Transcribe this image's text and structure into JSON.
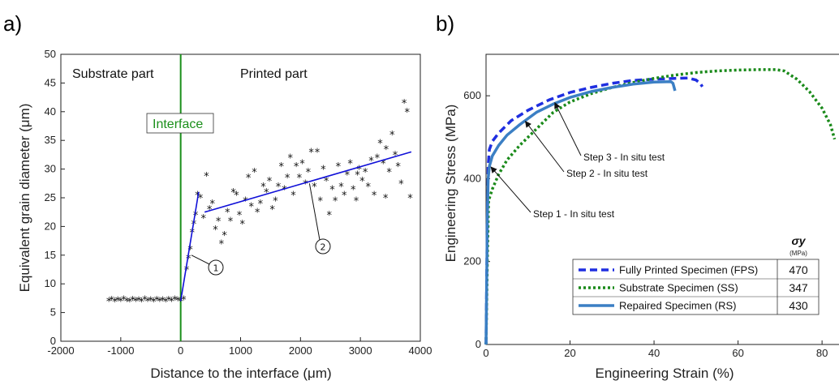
{
  "chart_data": [
    {
      "panel_label": "a)",
      "type": "scatter",
      "xlabel": "Distance to the interface (μm)",
      "ylabel": "Equivalent grain diameter (μm)",
      "xlim": [
        -2000,
        4000
      ],
      "ylim": [
        0,
        50
      ],
      "xticks": [
        "-2000",
        "-1000",
        "0",
        "1000",
        "2000",
        "3000",
        "4000"
      ],
      "yticks": [
        "0",
        "5",
        "10",
        "15",
        "20",
        "25",
        "30",
        "35",
        "40",
        "45",
        "50"
      ],
      "region_labels": {
        "left": "Substrate part",
        "right": "Printed part"
      },
      "interface_label": "Interface",
      "interface_x": 0,
      "marker": "asterisk",
      "points": [
        [
          -1200,
          7.0
        ],
        [
          -1150,
          7.2
        ],
        [
          -1100,
          6.9
        ],
        [
          -1050,
          7.1
        ],
        [
          -1000,
          7.0
        ],
        [
          -950,
          7.3
        ],
        [
          -900,
          7.0
        ],
        [
          -850,
          6.9
        ],
        [
          -800,
          7.2
        ],
        [
          -750,
          7.0
        ],
        [
          -700,
          7.1
        ],
        [
          -650,
          6.9
        ],
        [
          -600,
          7.3
        ],
        [
          -550,
          7.0
        ],
        [
          -500,
          7.1
        ],
        [
          -450,
          6.9
        ],
        [
          -400,
          7.2
        ],
        [
          -350,
          7.0
        ],
        [
          -300,
          7.1
        ],
        [
          -250,
          6.9
        ],
        [
          -200,
          7.2
        ],
        [
          -150,
          7.0
        ],
        [
          -100,
          7.3
        ],
        [
          -50,
          7.1
        ],
        [
          0,
          7.0
        ],
        [
          50,
          7.3
        ],
        [
          100,
          12.5
        ],
        [
          130,
          14.5
        ],
        [
          160,
          16.0
        ],
        [
          190,
          19.0
        ],
        [
          220,
          20.5
        ],
        [
          250,
          22.0
        ],
        [
          280,
          25.5
        ],
        [
          330,
          25.0
        ],
        [
          380,
          21.5
        ],
        [
          430,
          28.8
        ],
        [
          480,
          23.0
        ],
        [
          530,
          24.0
        ],
        [
          580,
          19.5
        ],
        [
          630,
          21.0
        ],
        [
          680,
          17.0
        ],
        [
          730,
          18.5
        ],
        [
          780,
          22.5
        ],
        [
          830,
          21.0
        ],
        [
          880,
          26.0
        ],
        [
          930,
          25.5
        ],
        [
          980,
          22.0
        ],
        [
          1030,
          20.5
        ],
        [
          1080,
          24.5
        ],
        [
          1130,
          28.5
        ],
        [
          1180,
          23.5
        ],
        [
          1230,
          29.5
        ],
        [
          1280,
          22.5
        ],
        [
          1330,
          24.0
        ],
        [
          1380,
          27.0
        ],
        [
          1430,
          26.0
        ],
        [
          1480,
          28.0
        ],
        [
          1530,
          23.0
        ],
        [
          1580,
          24.5
        ],
        [
          1630,
          27.0
        ],
        [
          1680,
          30.5
        ],
        [
          1730,
          26.5
        ],
        [
          1780,
          28.5
        ],
        [
          1830,
          32.0
        ],
        [
          1880,
          25.5
        ],
        [
          1930,
          30.5
        ],
        [
          1980,
          28.5
        ],
        [
          2030,
          31.0
        ],
        [
          2080,
          27.5
        ],
        [
          2130,
          29.5
        ],
        [
          2180,
          33.0
        ],
        [
          2230,
          27.0
        ],
        [
          2280,
          33.0
        ],
        [
          2330,
          24.5
        ],
        [
          2380,
          30.0
        ],
        [
          2430,
          28.0
        ],
        [
          2480,
          22.0
        ],
        [
          2530,
          26.5
        ],
        [
          2580,
          24.5
        ],
        [
          2630,
          30.5
        ],
        [
          2680,
          27.0
        ],
        [
          2730,
          25.5
        ],
        [
          2780,
          29.0
        ],
        [
          2830,
          31.0
        ],
        [
          2880,
          26.5
        ],
        [
          2930,
          24.5
        ],
        [
          2980,
          30.0
        ],
        [
          3030,
          28.0
        ],
        [
          3080,
          29.5
        ],
        [
          3130,
          27.0
        ],
        [
          3180,
          31.5
        ],
        [
          3230,
          25.5
        ],
        [
          3280,
          32.0
        ],
        [
          3330,
          34.5
        ],
        [
          3380,
          31.0
        ],
        [
          3430,
          33.5
        ],
        [
          3480,
          29.5
        ],
        [
          3530,
          36.0
        ],
        [
          3580,
          32.5
        ],
        [
          3630,
          30.5
        ],
        [
          3680,
          27.5
        ],
        [
          3730,
          41.5
        ],
        [
          3780,
          40.0
        ],
        [
          3830,
          25.0
        ],
        [
          3420,
          25.0
        ],
        [
          2950,
          29.0
        ]
      ],
      "fit_lines": [
        {
          "label": "①",
          "from": [
            0,
            7.0
          ],
          "to": [
            300,
            26.0
          ]
        },
        {
          "label": "②",
          "from": [
            400,
            22.5
          ],
          "to": [
            3850,
            33.0
          ]
        }
      ]
    },
    {
      "panel_label": "b)",
      "type": "line",
      "xlabel": "Engineering Strain (%)",
      "ylabel": "Engineering Stress (MPa)",
      "xlim": [
        0,
        85
      ],
      "ylim": [
        0,
        700
      ],
      "xticks": [
        "0",
        "20",
        "40",
        "60",
        "80"
      ],
      "yticks": [
        "0",
        "200",
        "400",
        "600"
      ],
      "legend_header": "σy",
      "legend_unit": "(MPa)",
      "series": [
        {
          "name": "Fully Printed Specimen (FPS)",
          "sigma_y": "470",
          "color": "#1f2ee0",
          "style": "dashed",
          "points": [
            [
              0,
              0
            ],
            [
              0.3,
              300
            ],
            [
              0.5,
              430
            ],
            [
              0.8,
              470
            ],
            [
              1.5,
              490
            ],
            [
              3,
              510
            ],
            [
              6,
              540
            ],
            [
              10,
              565
            ],
            [
              15,
              590
            ],
            [
              20,
              608
            ],
            [
              25,
              620
            ],
            [
              30,
              630
            ],
            [
              35,
              637
            ],
            [
              40,
              640
            ],
            [
              45,
              642
            ],
            [
              48,
              643
            ],
            [
              50,
              638
            ],
            [
              51,
              630
            ],
            [
              51.5,
              622
            ]
          ]
        },
        {
          "name": "Substrate Specimen (SS)",
          "sigma_y": "347",
          "color": "#1a8a1a",
          "style": "dotted",
          "points": [
            [
              0,
              0
            ],
            [
              0.3,
              200
            ],
            [
              0.6,
              347
            ],
            [
              1.5,
              375
            ],
            [
              3,
              410
            ],
            [
              5,
              445
            ],
            [
              8,
              480
            ],
            [
              12,
              520
            ],
            [
              16,
              560
            ],
            [
              20,
              585
            ],
            [
              25,
              605
            ],
            [
              30,
              620
            ],
            [
              35,
              632
            ],
            [
              40,
              642
            ],
            [
              45,
              650
            ],
            [
              50,
              656
            ],
            [
              55,
              660
            ],
            [
              60,
              662
            ],
            [
              65,
              663
            ],
            [
              69,
              663
            ],
            [
              71,
              660
            ],
            [
              74,
              640
            ],
            [
              77,
              610
            ],
            [
              80,
              570
            ],
            [
              82,
              530
            ],
            [
              83,
              495
            ]
          ]
        },
        {
          "name": "Repaired Specimen (RS)",
          "sigma_y": "430",
          "color": "#3b7fc4",
          "style": "solid",
          "points": [
            [
              0,
              0
            ],
            [
              0.3,
              300
            ],
            [
              0.5,
              400
            ],
            [
              0.8,
              430
            ],
            [
              1.5,
              455
            ],
            [
              3,
              480
            ],
            [
              5,
              505
            ],
            [
              8,
              530
            ],
            [
              12,
              560
            ],
            [
              16,
              580
            ],
            [
              20,
              596
            ],
            [
              25,
              610
            ],
            [
              30,
              620
            ],
            [
              35,
              628
            ],
            [
              40,
              633
            ],
            [
              44,
              634
            ],
            [
              44.5,
              630
            ],
            [
              45,
              612
            ]
          ]
        }
      ],
      "annotations": [
        {
          "text": "Step 1 - In situ test",
          "point": [
            0.8,
            430
          ]
        },
        {
          "text": "Step 2 - In situ test",
          "point": [
            9,
            540
          ]
        },
        {
          "text": "Step 3 - In situ test",
          "point": [
            16,
            585
          ]
        }
      ]
    }
  ]
}
